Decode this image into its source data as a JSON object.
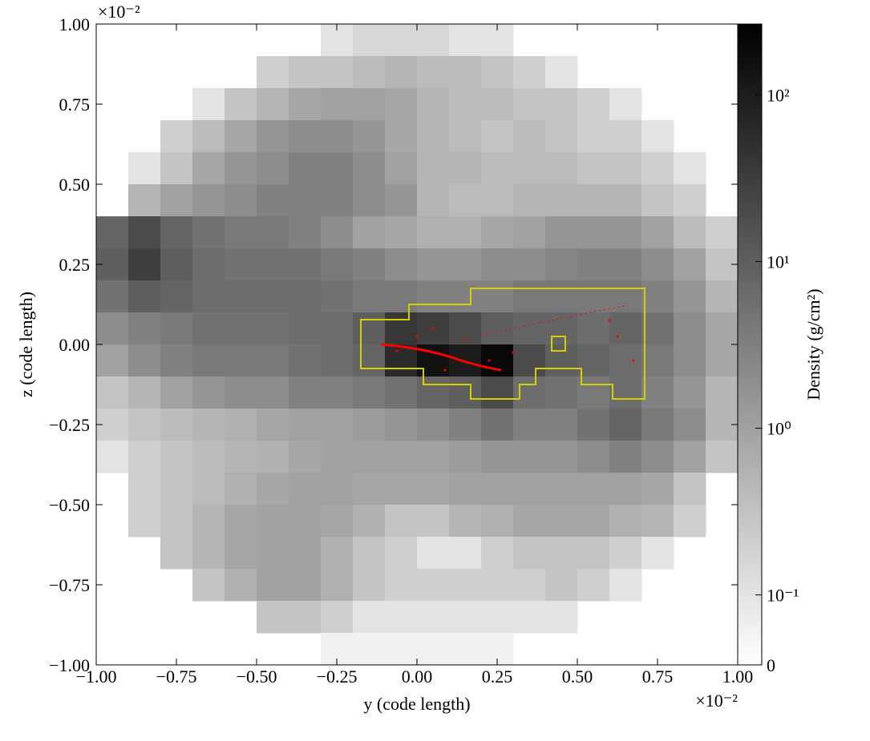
{
  "chart_data": {
    "type": "heatmap",
    "x_label": "y  (code length)",
    "y_label": "z  (code length)",
    "x_offset_text": "×10⁻²",
    "y_offset_text": "×10⁻²",
    "xlim": [
      -1,
      1
    ],
    "ylim": [
      -1,
      1
    ],
    "xticks": [
      {
        "value": -1,
        "label": "−1.00"
      },
      {
        "value": -0.75,
        "label": "−0.75"
      },
      {
        "value": -0.5,
        "label": "−0.50"
      },
      {
        "value": -0.25,
        "label": "−0.25"
      },
      {
        "value": 0,
        "label": "0.00"
      },
      {
        "value": 0.25,
        "label": "0.25"
      },
      {
        "value": 0.5,
        "label": "0.50"
      },
      {
        "value": 0.75,
        "label": "0.75"
      },
      {
        "value": 1,
        "label": "1.00"
      }
    ],
    "yticks": [
      {
        "value": -1,
        "label": "−1.00"
      },
      {
        "value": -0.75,
        "label": "−0.75"
      },
      {
        "value": -0.5,
        "label": "−0.50"
      },
      {
        "value": -0.25,
        "label": "−0.25"
      },
      {
        "value": 0,
        "label": "0.00"
      },
      {
        "value": 0.25,
        "label": "0.25"
      },
      {
        "value": 0.5,
        "label": "0.50"
      },
      {
        "value": 0.75,
        "label": "0.75"
      },
      {
        "value": 1,
        "label": "1.00"
      }
    ],
    "colorbar": {
      "label": "Density  (g/cm²)",
      "scale": "symlog",
      "linthresh": 0.1,
      "linscale": 0.42,
      "clim": [
        0,
        266
      ],
      "colormap": "gray_r",
      "ticks": [
        0,
        {
          "value": 0.1,
          "label": "10⁻¹"
        },
        {
          "value": 1,
          "label": "10⁰"
        },
        {
          "value": 10,
          "label": "10¹"
        },
        {
          "value": 100,
          "label": "10²"
        }
      ]
    },
    "z": [
      [
        null,
        null,
        null,
        null,
        null,
        null,
        null,
        0.1,
        0.15,
        0.15,
        0.15,
        0.1,
        0.1,
        null,
        null,
        null,
        null,
        null,
        null,
        null
      ],
      [
        null,
        null,
        null,
        null,
        null,
        0.2,
        0.3,
        0.3,
        0.4,
        0.5,
        0.4,
        0.4,
        0.3,
        0.2,
        0.1,
        null,
        null,
        null,
        null,
        null
      ],
      [
        null,
        null,
        null,
        0.1,
        0.3,
        0.5,
        0.8,
        1,
        1,
        0.8,
        0.5,
        0.4,
        0.4,
        0.3,
        0.3,
        0.2,
        0.1,
        null,
        null,
        null
      ],
      [
        null,
        null,
        0.2,
        0.4,
        0.8,
        1.5,
        2,
        2,
        1.5,
        0.8,
        0.5,
        0.4,
        0.3,
        0.4,
        0.3,
        0.2,
        0.2,
        0.1,
        null,
        null
      ],
      [
        null,
        0.1,
        0.3,
        0.8,
        1.5,
        2,
        3,
        3,
        2,
        1,
        0.5,
        0.5,
        0.4,
        0.4,
        0.4,
        0.3,
        0.3,
        0.2,
        0.1,
        null
      ],
      [
        null,
        0.5,
        1,
        1.5,
        2,
        3,
        3,
        3,
        2,
        1.5,
        0.5,
        0.4,
        0.4,
        0.5,
        0.5,
        0.5,
        0.5,
        0.3,
        0.2,
        null
      ],
      [
        8,
        20,
        8,
        5,
        4,
        4,
        3,
        2,
        1,
        0.8,
        0.6,
        0.6,
        0.8,
        1,
        1.5,
        1.5,
        1.5,
        1,
        0.4,
        0.2
      ],
      [
        10,
        30,
        10,
        6,
        5,
        5,
        5,
        4,
        3,
        2,
        1.5,
        1.5,
        2,
        2,
        2.5,
        3,
        3,
        2,
        1,
        0.3
      ],
      [
        5,
        10,
        8,
        6,
        6,
        6,
        6,
        5,
        4,
        4,
        3,
        3,
        3,
        4,
        4,
        4,
        4,
        3,
        1.5,
        0.5
      ],
      [
        2,
        3,
        4,
        5,
        5,
        5,
        6,
        6,
        10,
        40,
        30,
        20,
        10,
        8,
        8,
        6,
        8,
        5,
        2,
        0.8
      ],
      [
        1,
        2,
        3,
        4,
        4,
        4,
        5,
        6,
        8,
        60,
        150,
        100,
        200,
        20,
        10,
        8,
        6,
        4,
        2,
        0.8
      ],
      [
        0.3,
        0.5,
        1,
        1.5,
        2,
        2,
        3,
        3,
        4,
        5,
        8,
        10,
        20,
        6,
        5,
        4,
        6,
        3,
        1.5,
        0.5
      ],
      [
        0.2,
        0.3,
        0.4,
        0.5,
        0.6,
        0.8,
        1,
        1,
        1.2,
        1.5,
        2,
        3,
        5,
        3,
        3,
        5,
        8,
        4,
        2,
        0.5
      ],
      [
        0.1,
        0.2,
        0.3,
        0.4,
        0.5,
        0.6,
        0.8,
        1,
        1,
        1,
        1,
        1.2,
        1.5,
        1.5,
        1.5,
        2,
        3,
        2,
        1,
        0.3
      ],
      [
        null,
        0.2,
        0.3,
        0.4,
        0.6,
        0.8,
        1,
        1,
        0.8,
        0.8,
        0.8,
        1,
        1,
        1,
        1,
        1,
        1,
        0.8,
        0.3,
        null
      ],
      [
        null,
        0.2,
        0.3,
        0.5,
        0.8,
        1,
        1,
        0.8,
        0.6,
        0.3,
        0.3,
        0.5,
        0.6,
        0.8,
        0.8,
        0.8,
        0.6,
        0.5,
        0.2,
        null
      ],
      [
        null,
        null,
        0.3,
        0.5,
        0.8,
        1,
        1,
        0.6,
        0.3,
        0.2,
        0.1,
        0.1,
        0.2,
        0.3,
        0.3,
        0.3,
        0.2,
        0.1,
        null,
        null
      ],
      [
        null,
        null,
        null,
        0.3,
        0.6,
        1,
        1,
        0.6,
        0.3,
        0.2,
        0.2,
        0.2,
        0.2,
        0.2,
        0.3,
        0.2,
        0.1,
        null,
        null,
        null
      ],
      [
        null,
        null,
        null,
        null,
        null,
        0.3,
        0.3,
        0.2,
        0.1,
        0.1,
        0.1,
        0.1,
        0.1,
        0.1,
        0.1,
        null,
        null,
        null,
        null,
        null
      ],
      [
        null,
        null,
        null,
        null,
        null,
        null,
        null,
        0.05,
        0.05,
        0.05,
        0.05,
        0.05,
        0.05,
        null,
        null,
        null,
        null,
        null,
        null,
        null
      ]
    ]
  }
}
